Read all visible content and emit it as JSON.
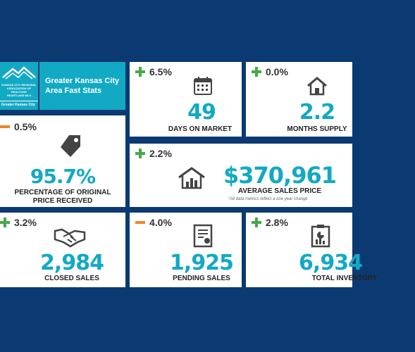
{
  "header": {
    "logo_text": [
      "KANSAS CITY REGIONAL",
      "ASSOCIATION OF REALTORS",
      "HEARTLAND MLS"
    ],
    "region_tag": "Greater Kansas City",
    "title_line1": "Greater Kansas City",
    "title_line2": "Area Fast Stats"
  },
  "stats": {
    "days_on_market": {
      "change": "6.5%",
      "direction": "up",
      "value": "49",
      "label": "DAYS ON MARKET",
      "icon": "calendar-icon"
    },
    "months_supply": {
      "change": "0.0%",
      "direction": "up",
      "value": "2.2",
      "label": "MONTHS SUPPLY",
      "icon": "house-icon"
    },
    "pct_original_price": {
      "change": "0.5%",
      "direction": "down",
      "value": "95.7%",
      "label_line1": "PERCENTAGE OF ORIGINAL",
      "label_line2": "PRICE RECEIVED",
      "icon": "price-tag-icon"
    },
    "avg_sales_price": {
      "change": "2.2%",
      "direction": "up",
      "value": "$370,961",
      "label": "AVERAGE SALES PRICE",
      "note": "*All data metrics reflect a one year change",
      "icon": "house-chart-icon"
    },
    "closed_sales": {
      "change": "3.2%",
      "direction": "up",
      "value": "2,984",
      "label": "CLOSED SALES",
      "icon": "handshake-icon"
    },
    "pending_sales": {
      "change": "4.0%",
      "direction": "down",
      "value": "1,925",
      "label": "PENDING SALES",
      "icon": "certificate-icon"
    },
    "total_inventory": {
      "change": "2.8%",
      "direction": "up",
      "value": "6,934",
      "label": "TOTAL INVENTORY",
      "icon": "clipboard-chart-icon"
    }
  },
  "colors": {
    "background": "#0b3a73",
    "accent": "#12a9c4",
    "increase": "#45a947",
    "decrease": "#f0842a"
  }
}
